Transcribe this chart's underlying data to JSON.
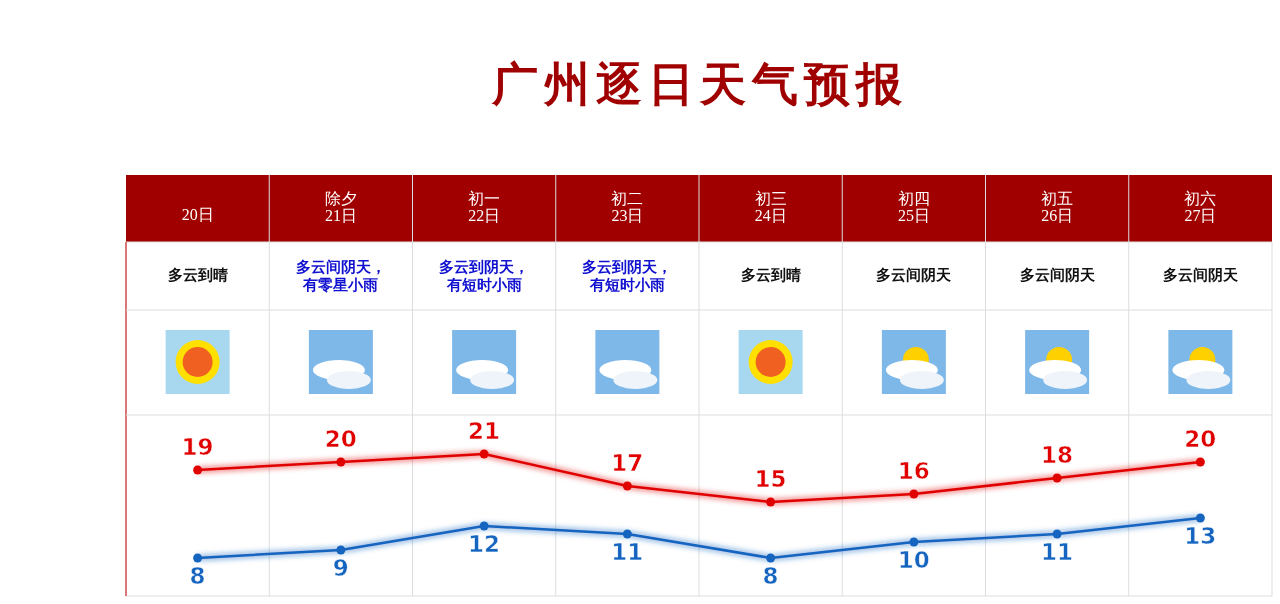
{
  "chart_data": {
    "type": "line",
    "title": "广州逐日天气预报",
    "categories": [
      "20日",
      "除夕\n21日",
      "初一\n22日",
      "初二\n23日",
      "初三\n24日",
      "初四\n25日",
      "初五\n26日",
      "初六\n27日"
    ],
    "series": [
      {
        "color": "#e00000",
        "values": [
          19,
          20,
          21,
          17,
          15,
          16,
          18,
          20
        ]
      },
      {
        "color": "#1565c0",
        "values": [
          8,
          9,
          12,
          11,
          8,
          10,
          11,
          13
        ]
      }
    ],
    "data_labels": true,
    "marker": "circle",
    "annotations": [
      "多云到晴",
      "多云间阴天，有零星小雨",
      "多云到阴天，有短时小雨",
      "多云到阴天，有短时小雨",
      "多云到晴",
      "多云间阴天",
      "多云间阴天",
      "多云间阴天"
    ]
  }
}
